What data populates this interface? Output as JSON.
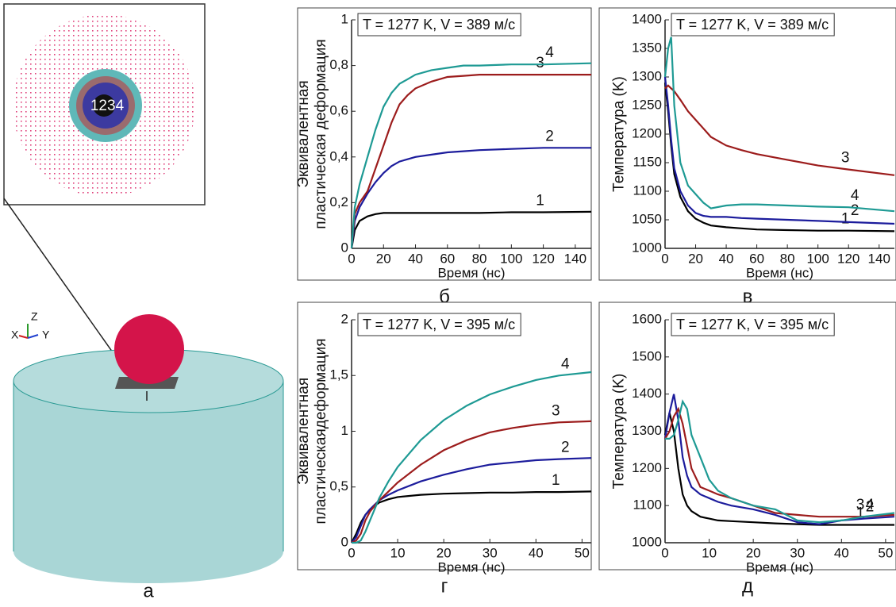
{
  "panel_a": {
    "letter": "а",
    "zone_labels": [
      "1",
      "2",
      "3",
      "4"
    ],
    "axes": [
      "X",
      "Y",
      "Z"
    ]
  },
  "chart_data": [
    {
      "type": "line",
      "title": "T = 1277 K, V = 389 м/с",
      "panel_label": "б",
      "xlabel": "Время (нс)",
      "ylabel": [
        "Эквивалентная",
        "пластическая деформация"
      ],
      "xlim": [
        0,
        150
      ],
      "xticks": [
        0,
        20,
        40,
        60,
        80,
        100,
        120,
        140
      ],
      "ylim": [
        0,
        1
      ],
      "yticks": [
        0,
        {
          "value": 0.2,
          "label": "0,2"
        },
        {
          "value": 0.4,
          "label": "0,4"
        },
        {
          "value": 0.6,
          "label": "0,6"
        },
        {
          "value": 0.8,
          "label": "0,8"
        },
        1
      ],
      "x": [
        0,
        2,
        5,
        10,
        15,
        20,
        25,
        30,
        35,
        40,
        50,
        60,
        70,
        80,
        100,
        120,
        150
      ],
      "series": [
        {
          "name": "1",
          "color": "#000000",
          "values": [
            0,
            0.08,
            0.12,
            0.14,
            0.15,
            0.155,
            0.155,
            0.155,
            0.155,
            0.155,
            0.155,
            0.155,
            0.155,
            0.155,
            0.158,
            0.158,
            0.16
          ]
        },
        {
          "name": "2",
          "color": "#1c1c9c",
          "values": [
            0,
            0.12,
            0.18,
            0.24,
            0.29,
            0.33,
            0.36,
            0.38,
            0.39,
            0.4,
            0.41,
            0.42,
            0.425,
            0.43,
            0.435,
            0.44,
            0.44
          ]
        },
        {
          "name": "3",
          "color": "#9c1c1c",
          "values": [
            0,
            0.15,
            0.2,
            0.25,
            0.35,
            0.45,
            0.55,
            0.63,
            0.67,
            0.7,
            0.73,
            0.75,
            0.755,
            0.76,
            0.76,
            0.76,
            0.76
          ]
        },
        {
          "name": "4",
          "color": "#1e9a94",
          "values": [
            0,
            0.18,
            0.28,
            0.4,
            0.52,
            0.62,
            0.68,
            0.72,
            0.74,
            0.76,
            0.78,
            0.79,
            0.8,
            0.8,
            0.805,
            0.805,
            0.81
          ]
        }
      ]
    },
    {
      "type": "line",
      "title": "T = 1277 K, V = 389 м/с",
      "panel_label": "в",
      "xlabel": "Время (нс)",
      "ylabel": [
        "Температура (K)"
      ],
      "xlim": [
        0,
        150
      ],
      "xticks": [
        0,
        20,
        40,
        60,
        80,
        100,
        120,
        140
      ],
      "ylim": [
        1000,
        1400
      ],
      "yticks": [
        1000,
        1050,
        1100,
        1150,
        1200,
        1250,
        1300,
        1350,
        1400
      ],
      "x": [
        0,
        2,
        4,
        6,
        10,
        15,
        20,
        25,
        30,
        40,
        50,
        60,
        80,
        100,
        120,
        150
      ],
      "series": [
        {
          "name": "1",
          "color": "#000000",
          "values": [
            1290,
            1240,
            1180,
            1130,
            1090,
            1065,
            1052,
            1045,
            1040,
            1037,
            1035,
            1033,
            1032,
            1031,
            1031,
            1030
          ]
        },
        {
          "name": "2",
          "color": "#1c1c9c",
          "values": [
            1300,
            1250,
            1190,
            1140,
            1100,
            1075,
            1062,
            1057,
            1055,
            1055,
            1053,
            1052,
            1050,
            1048,
            1046,
            1043
          ]
        },
        {
          "name": "3",
          "color": "#9c1c1c",
          "values": [
            1280,
            1285,
            1280,
            1275,
            1260,
            1240,
            1225,
            1210,
            1195,
            1180,
            1172,
            1165,
            1155,
            1145,
            1138,
            1128
          ]
        },
        {
          "name": "4",
          "color": "#1e9a94",
          "values": [
            1300,
            1350,
            1370,
            1250,
            1150,
            1110,
            1095,
            1080,
            1070,
            1075,
            1077,
            1077,
            1075,
            1073,
            1072,
            1065
          ]
        }
      ]
    },
    {
      "type": "line",
      "title": "T = 1277 K, V = 395 м/с",
      "panel_label": "г",
      "xlabel": "Время (нс)",
      "ylabel": [
        "Эквивалентная",
        "пластическаядеформация"
      ],
      "xlim": [
        0,
        52
      ],
      "xticks": [
        0,
        10,
        20,
        30,
        40,
        50
      ],
      "ylim": [
        0,
        2
      ],
      "yticks": [
        0,
        {
          "value": 0.5,
          "label": "0,5"
        },
        1,
        {
          "value": 1.5,
          "label": "1,5"
        },
        2
      ],
      "x": [
        0,
        1,
        2,
        3,
        4,
        5,
        6,
        8,
        10,
        15,
        20,
        25,
        30,
        35,
        40,
        45,
        52
      ],
      "series": [
        {
          "name": "1",
          "color": "#000000",
          "values": [
            0,
            0.08,
            0.18,
            0.25,
            0.3,
            0.33,
            0.36,
            0.39,
            0.41,
            0.43,
            0.44,
            0.445,
            0.45,
            0.45,
            0.455,
            0.455,
            0.46
          ]
        },
        {
          "name": "2",
          "color": "#1c1c9c",
          "values": [
            0,
            0.05,
            0.15,
            0.25,
            0.3,
            0.34,
            0.38,
            0.43,
            0.47,
            0.55,
            0.61,
            0.66,
            0.7,
            0.72,
            0.74,
            0.75,
            0.76
          ]
        },
        {
          "name": "3",
          "color": "#9c1c1c",
          "values": [
            0,
            0.02,
            0.08,
            0.2,
            0.28,
            0.33,
            0.38,
            0.46,
            0.54,
            0.7,
            0.83,
            0.92,
            0.99,
            1.03,
            1.06,
            1.08,
            1.09
          ]
        },
        {
          "name": "4",
          "color": "#1e9a94",
          "values": [
            0,
            0,
            0.02,
            0.1,
            0.2,
            0.3,
            0.4,
            0.55,
            0.68,
            0.92,
            1.1,
            1.23,
            1.33,
            1.4,
            1.46,
            1.5,
            1.53
          ]
        }
      ]
    },
    {
      "type": "line",
      "title": "T = 1277 K, V = 395 м/с",
      "panel_label": "д",
      "xlabel": "Время (нс)",
      "ylabel": [
        "Температура (K)"
      ],
      "xlim": [
        0,
        52
      ],
      "xticks": [
        0,
        10,
        20,
        30,
        40,
        50
      ],
      "ylim": [
        1000,
        1600
      ],
      "yticks": [
        1000,
        1100,
        1200,
        1300,
        1400,
        1500,
        1600
      ],
      "x": [
        0,
        1,
        2,
        3,
        4,
        5,
        6,
        8,
        10,
        12,
        15,
        20,
        25,
        30,
        35,
        40,
        45,
        52
      ],
      "series": [
        {
          "name": "1",
          "color": "#000000",
          "values": [
            1290,
            1350,
            1300,
            1200,
            1130,
            1100,
            1085,
            1070,
            1065,
            1060,
            1058,
            1055,
            1052,
            1050,
            1048,
            1048,
            1048,
            1048
          ]
        },
        {
          "name": "2",
          "color": "#1c1c9c",
          "values": [
            1280,
            1350,
            1400,
            1330,
            1230,
            1180,
            1150,
            1130,
            1120,
            1110,
            1100,
            1090,
            1075,
            1055,
            1050,
            1060,
            1065,
            1070
          ]
        },
        {
          "name": "3",
          "color": "#9c1c1c",
          "values": [
            1280,
            1300,
            1340,
            1360,
            1320,
            1260,
            1200,
            1150,
            1140,
            1130,
            1120,
            1100,
            1080,
            1075,
            1070,
            1070,
            1070,
            1075
          ]
        },
        {
          "name": "4",
          "color": "#1e9a94",
          "values": [
            1280,
            1280,
            1290,
            1330,
            1380,
            1360,
            1290,
            1230,
            1170,
            1140,
            1120,
            1100,
            1090,
            1060,
            1055,
            1060,
            1070,
            1080
          ]
        }
      ]
    }
  ]
}
